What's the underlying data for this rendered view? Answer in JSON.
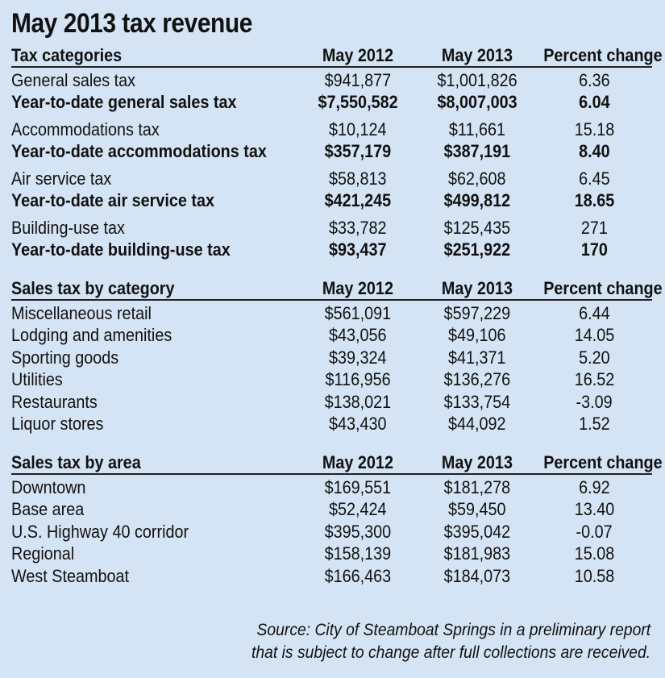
{
  "title": "May 2013 tax revenue",
  "tax_categories": {
    "headers": [
      "Tax categories",
      "May 2012",
      "May 2013",
      "Percent change"
    ],
    "rows": [
      {
        "label": "General sales tax",
        "may2012": "$941,877",
        "may2013": "$1,001,826",
        "pct": "6.36",
        "bold": false,
        "gap": false
      },
      {
        "label": "Year-to-date general sales tax",
        "may2012": "$7,550,582",
        "may2013": "$8,007,003",
        "pct": "6.04",
        "bold": true,
        "gap": false
      },
      {
        "label": "Accommodations tax",
        "may2012": "$10,124",
        "may2013": "$11,661",
        "pct": "15.18",
        "bold": false,
        "gap": true
      },
      {
        "label": "Year-to-date accommodations tax",
        "may2012": "$357,179",
        "may2013": "$387,191",
        "pct": "8.40",
        "bold": true,
        "gap": false
      },
      {
        "label": "Air service tax",
        "may2012": "$58,813",
        "may2013": "$62,608",
        "pct": "6.45",
        "bold": false,
        "gap": true
      },
      {
        "label": "Year-to-date air service tax",
        "may2012": "$421,245",
        "may2013": "$499,812",
        "pct": "18.65",
        "bold": true,
        "gap": false
      },
      {
        "label": "Building-use tax",
        "may2012": "$33,782",
        "may2013": "$125,435",
        "pct": "271",
        "bold": false,
        "gap": true
      },
      {
        "label": "Year-to-date building-use tax",
        "may2012": "$93,437",
        "may2013": "$251,922",
        "pct": "170",
        "bold": true,
        "gap": false
      }
    ]
  },
  "sales_by_category": {
    "headers": [
      "Sales tax by category",
      "May 2012",
      "May 2013",
      "Percent change"
    ],
    "rows": [
      {
        "label": "Miscellaneous retail",
        "may2012": "$561,091",
        "may2013": "$597,229",
        "pct": "6.44"
      },
      {
        "label": "Lodging and amenities",
        "may2012": "$43,056",
        "may2013": "$49,106",
        "pct": "14.05"
      },
      {
        "label": "Sporting goods",
        "may2012": "$39,324",
        "may2013": "$41,371",
        "pct": "5.20"
      },
      {
        "label": "Utilities",
        "may2012": "$116,956",
        "may2013": "$136,276",
        "pct": "16.52"
      },
      {
        "label": "Restaurants",
        "may2012": "$138,021",
        "may2013": "$133,754",
        "pct": "-3.09"
      },
      {
        "label": "Liquor stores",
        "may2012": "$43,430",
        "may2013": "$44,092",
        "pct": "1.52"
      }
    ]
  },
  "sales_by_area": {
    "headers": [
      "Sales tax by area",
      "May 2012",
      "May 2013",
      "Percent change"
    ],
    "rows": [
      {
        "label": "Downtown",
        "may2012": "$169,551",
        "may2013": "$181,278",
        "pct": "6.92"
      },
      {
        "label": "Base area",
        "may2012": "$52,424",
        "may2013": "$59,450",
        "pct": "13.40"
      },
      {
        "label": "U.S. Highway 40 corridor",
        "may2012": "$395,300",
        "may2013": "$395,042",
        "pct": "-0.07"
      },
      {
        "label": "Regional",
        "may2012": "$158,139",
        "may2013": "$181,983",
        "pct": "15.08"
      },
      {
        "label": "West Steamboat",
        "may2012": "$166,463",
        "may2013": "$184,073",
        "pct": "10.58"
      }
    ]
  },
  "source": {
    "line1": "Source: City of Steamboat Springs in a preliminary report",
    "line2": "that is subject to change after full collections are received."
  }
}
